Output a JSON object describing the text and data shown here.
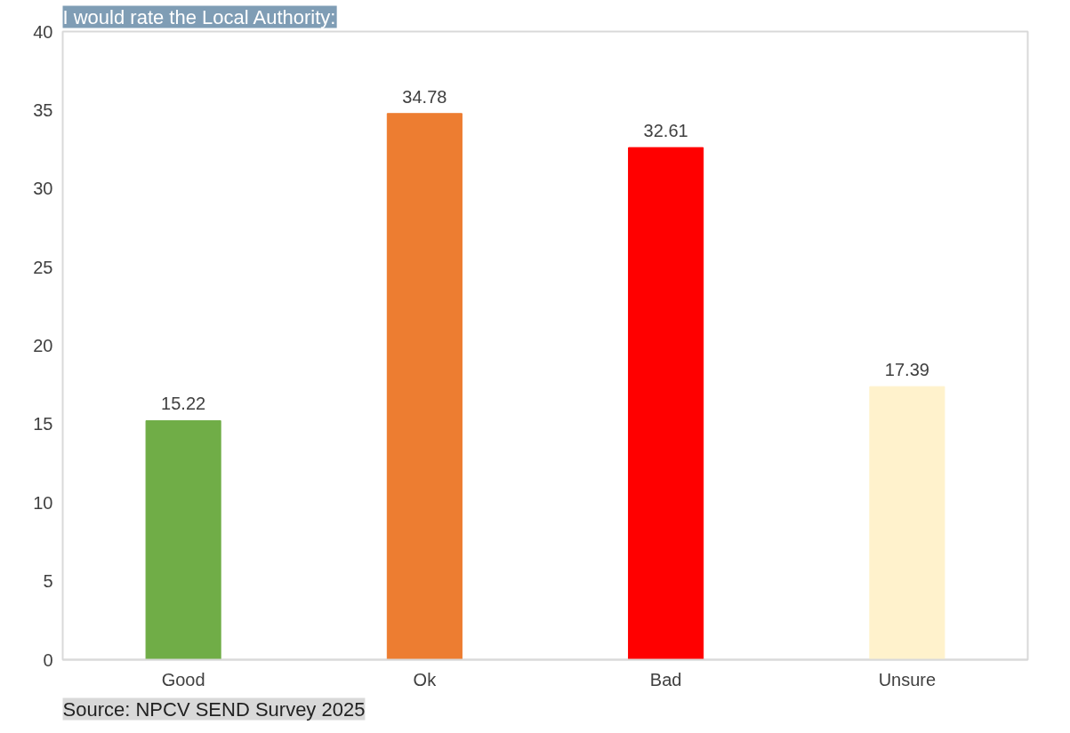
{
  "chart_data": {
    "type": "bar",
    "title": "I would rate the Local Authority:",
    "categories": [
      "Good",
      "Ok",
      "Bad",
      "Unsure"
    ],
    "values": [
      15.22,
      34.78,
      32.61,
      17.39
    ],
    "colors": [
      "#70ad47",
      "#ed7d31",
      "#ff0000",
      "#fff2cc"
    ],
    "ylim": [
      0,
      40
    ],
    "yticks": [
      0,
      5,
      10,
      15,
      20,
      25,
      30,
      35,
      40
    ],
    "grid": false,
    "data_labels": true,
    "annotations": [
      "Source: NPCV SEND Survey 2025"
    ]
  }
}
